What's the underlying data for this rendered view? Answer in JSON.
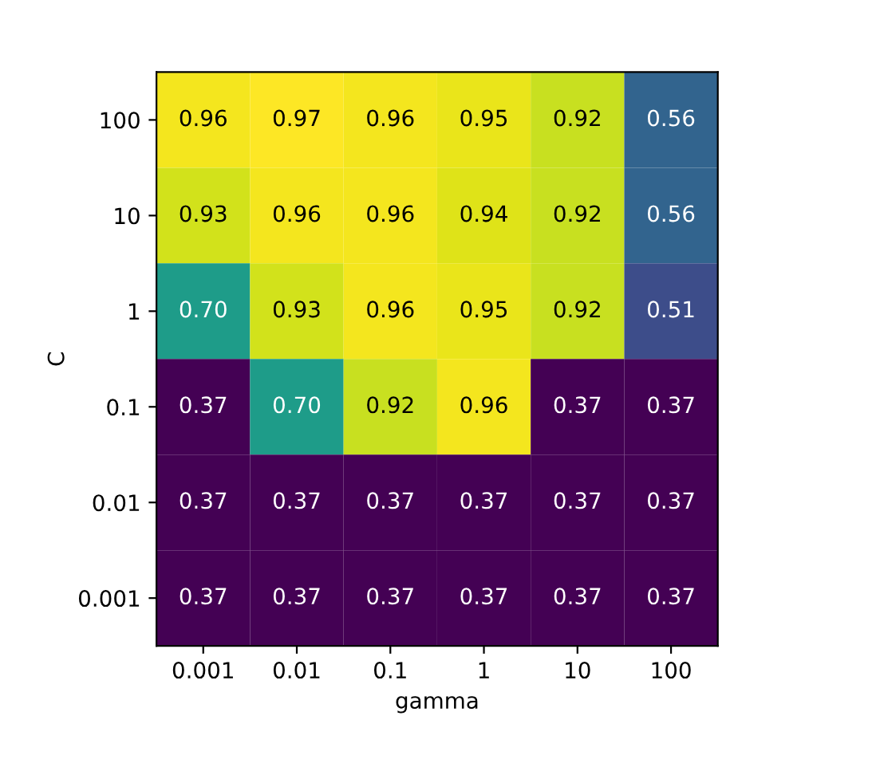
{
  "chart_data": {
    "type": "heatmap",
    "xlabel": "gamma",
    "ylabel": "C",
    "categories": [
      "0.001",
      "0.01",
      "0.1",
      "1",
      "10",
      "100"
    ],
    "y_categories": [
      "100",
      "10",
      "1",
      "0.1",
      "0.01",
      "0.001"
    ],
    "cells": [
      [
        0.96,
        0.97,
        0.96,
        0.95,
        0.92,
        0.56
      ],
      [
        0.93,
        0.96,
        0.96,
        0.94,
        0.92,
        0.56
      ],
      [
        0.7,
        0.93,
        0.96,
        0.95,
        0.92,
        0.51
      ],
      [
        0.37,
        0.7,
        0.92,
        0.96,
        0.37,
        0.37
      ],
      [
        0.37,
        0.37,
        0.37,
        0.37,
        0.37,
        0.37
      ],
      [
        0.37,
        0.37,
        0.37,
        0.37,
        0.37,
        0.37
      ]
    ],
    "cell_labels": [
      [
        "0.96",
        "0.97",
        "0.96",
        "0.95",
        "0.92",
        "0.56"
      ],
      [
        "0.93",
        "0.96",
        "0.96",
        "0.94",
        "0.92",
        "0.56"
      ],
      [
        "0.70",
        "0.93",
        "0.96",
        "0.95",
        "0.92",
        "0.51"
      ],
      [
        "0.37",
        "0.70",
        "0.92",
        "0.96",
        "0.37",
        "0.37"
      ],
      [
        "0.37",
        "0.37",
        "0.37",
        "0.37",
        "0.37",
        "0.37"
      ],
      [
        "0.37",
        "0.37",
        "0.37",
        "0.37",
        "0.37",
        "0.37"
      ]
    ],
    "data_labels": true
  }
}
